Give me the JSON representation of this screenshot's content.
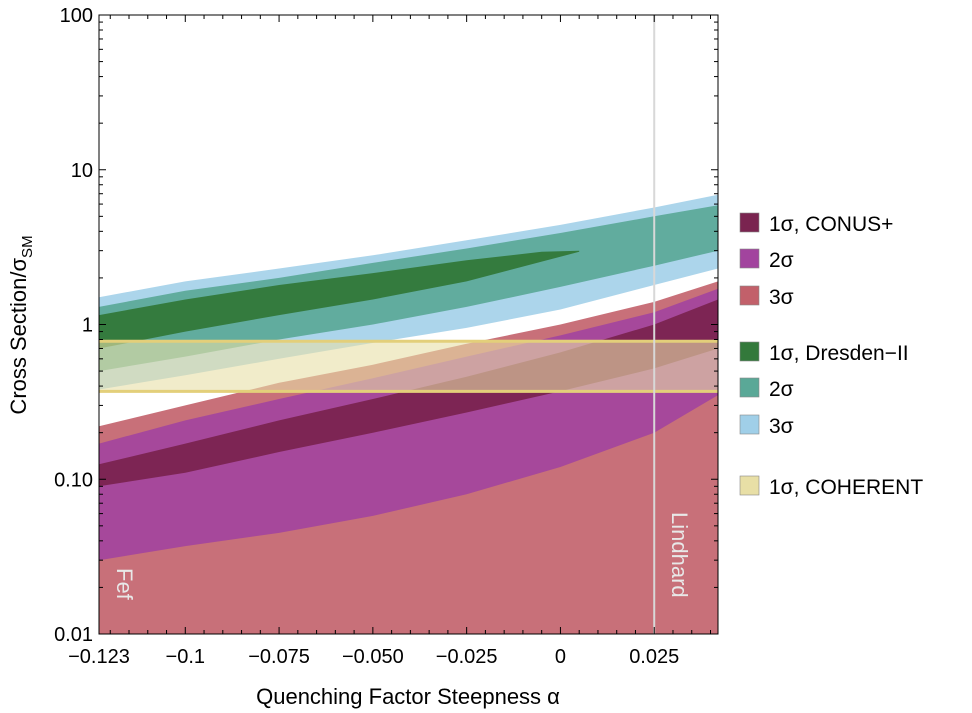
{
  "chart_data": {
    "type": "area",
    "title": "",
    "xlabel": "Quenching Factor Steepness α",
    "ylabel": "Cross Section/σ",
    "ylabel_sub": "SM",
    "xlim": [
      -0.123,
      0.042
    ],
    "ylim": [
      0.01,
      100
    ],
    "yscale": "log",
    "x_ticks": [
      -0.123,
      -0.1,
      -0.075,
      -0.05,
      -0.025,
      0,
      0.025
    ],
    "x_tick_labels": [
      "−0.123",
      "−0.1",
      "−0.075",
      "−0.050",
      "−0.025",
      "0",
      "0.025"
    ],
    "y_ticks": [
      0.01,
      0.1,
      1,
      10,
      100
    ],
    "y_tick_labels": [
      "0.01",
      "0.10",
      "1",
      "10",
      "100"
    ],
    "bands": [
      {
        "name": "3σ",
        "experiment": "CONUS+",
        "color": "#c2606a",
        "opacity": 0.9,
        "x": [
          -0.123,
          -0.1,
          -0.075,
          -0.05,
          -0.025,
          0,
          0.025,
          0.042
        ],
        "lower": [
          0.01,
          0.01,
          0.01,
          0.01,
          0.01,
          0.01,
          0.01,
          0.01
        ],
        "upper": [
          0.22,
          0.3,
          0.42,
          0.55,
          0.75,
          1.0,
          1.4,
          1.9
        ]
      },
      {
        "name": "2σ",
        "experiment": "CONUS+",
        "color": "#a2449e",
        "opacity": 0.9,
        "x": [
          -0.123,
          -0.1,
          -0.075,
          -0.05,
          -0.025,
          0,
          0.025,
          0.042
        ],
        "lower": [
          0.03,
          0.037,
          0.045,
          0.058,
          0.08,
          0.12,
          0.2,
          0.35
        ],
        "upper": [
          0.17,
          0.24,
          0.33,
          0.45,
          0.62,
          0.85,
          1.2,
          1.7
        ]
      },
      {
        "name": "1σ",
        "experiment": "CONUS+",
        "color": "#7a2450",
        "opacity": 0.95,
        "x": [
          -0.123,
          -0.1,
          -0.075,
          -0.05,
          -0.025,
          0,
          0.025,
          0.042
        ],
        "lower": [
          0.09,
          0.11,
          0.15,
          0.2,
          0.27,
          0.37,
          0.52,
          0.7
        ],
        "upper": [
          0.125,
          0.17,
          0.24,
          0.33,
          0.46,
          0.66,
          1.0,
          1.45
        ]
      },
      {
        "name": "3σ",
        "experiment": "Dresden-II",
        "color": "#a0cfe8",
        "opacity": 0.88,
        "x": [
          -0.123,
          -0.1,
          -0.075,
          -0.05,
          -0.025,
          0,
          0.025,
          0.042
        ],
        "lower": [
          0.38,
          0.47,
          0.6,
          0.76,
          0.95,
          1.25,
          1.8,
          2.3
        ],
        "upper": [
          1.5,
          1.9,
          2.3,
          2.8,
          3.5,
          4.4,
          5.7,
          6.9
        ]
      },
      {
        "name": "2σ",
        "experiment": "Dresden-II",
        "color": "#5aa897",
        "opacity": 0.92,
        "x": [
          -0.123,
          -0.1,
          -0.075,
          -0.05,
          -0.025,
          0,
          0.025,
          0.042
        ],
        "lower": [
          0.5,
          0.62,
          0.8,
          1.0,
          1.3,
          1.75,
          2.4,
          3.0
        ],
        "upper": [
          1.3,
          1.65,
          2.0,
          2.5,
          3.1,
          3.9,
          5.0,
          5.9
        ]
      },
      {
        "name": "1σ",
        "experiment": "Dresden-II",
        "color": "#33793b",
        "opacity": 0.97,
        "x": [
          -0.123,
          -0.1,
          -0.075,
          -0.05,
          -0.025,
          -0.005,
          0.005
        ],
        "lower": [
          0.7,
          0.9,
          1.15,
          1.45,
          1.9,
          2.55,
          2.95
        ],
        "upper": [
          1.15,
          1.45,
          1.8,
          2.15,
          2.6,
          2.95,
          3.0
        ]
      },
      {
        "name": "1σ",
        "experiment": "COHERENT",
        "color": "#e8dfa6",
        "opacity": 0.6,
        "x": [
          -0.123,
          0.042
        ],
        "lower": [
          0.37,
          0.37
        ],
        "upper": [
          0.78,
          0.78
        ]
      }
    ],
    "vertical_lines": [
      {
        "x": -0.123,
        "label": "Fef"
      },
      {
        "x": 0.025,
        "label": "Lindhard"
      }
    ],
    "legend_position": "right",
    "legend": [
      {
        "label": "1σ, CONUS+",
        "color": "#7a2450"
      },
      {
        "label": "2σ",
        "color": "#a2449e"
      },
      {
        "label": "3σ",
        "color": "#c2606a"
      },
      {
        "label": "1σ, Dresden−II",
        "color": "#33793b"
      },
      {
        "label": "2σ",
        "color": "#5aa897"
      },
      {
        "label": "3σ",
        "color": "#a0cfe8"
      },
      {
        "label": "1σ, COHERENT",
        "color": "#e8dfa6"
      }
    ]
  }
}
